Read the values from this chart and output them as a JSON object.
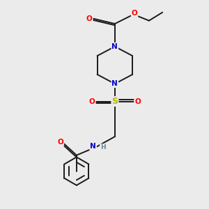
{
  "background_color": "#ebebeb",
  "bond_color": "#1a1a1a",
  "atom_colors": {
    "O": "#ff0000",
    "N": "#0000cc",
    "S": "#b8b800",
    "H": "#708090",
    "C": "#1a1a1a"
  },
  "fig_width": 3.0,
  "fig_height": 3.0,
  "dpi": 100
}
